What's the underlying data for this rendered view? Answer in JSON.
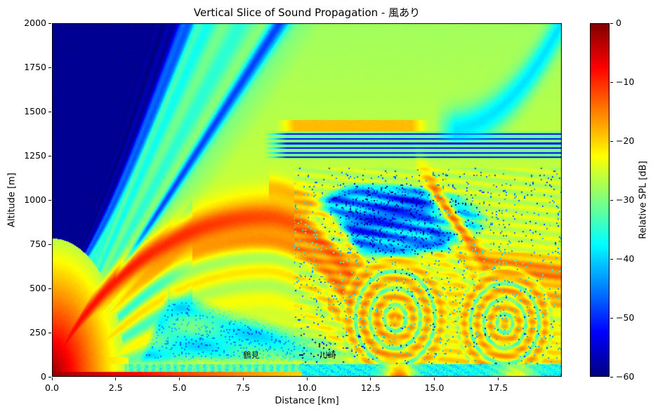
{
  "figure": {
    "background": "#ffffff",
    "title": "Vertical Slice of Sound Propagation - 風あり"
  },
  "chart_data": {
    "type": "heatmap",
    "title": "Vertical Slice of Sound Propagation - 風あり",
    "xlabel": "Distance [km]",
    "ylabel": "Altitude [m]",
    "xlim": [
      0,
      20
    ],
    "ylim": [
      0,
      2000
    ],
    "x_ticks": [
      0,
      2.5,
      5,
      7.5,
      10,
      12.5,
      15,
      17.5
    ],
    "x_tick_labels": [
      "0.0",
      "2.5",
      "5.0",
      "7.5",
      "10.0",
      "12.5",
      "15.0",
      "17.5"
    ],
    "y_ticks": [
      0,
      250,
      500,
      750,
      1000,
      1250,
      1500,
      1750,
      2000
    ],
    "y_tick_labels": [
      "0",
      "250",
      "500",
      "750",
      "1000",
      "1250",
      "1500",
      "1750",
      "2000"
    ],
    "grid": false,
    "colormap": "jet",
    "colormap_stops": [
      {
        "pos": 0.0,
        "color": "#000080"
      },
      {
        "pos": 0.125,
        "color": "#0000ff"
      },
      {
        "pos": 0.375,
        "color": "#00ffff"
      },
      {
        "pos": 0.625,
        "color": "#ffff00"
      },
      {
        "pos": 0.875,
        "color": "#ff0000"
      },
      {
        "pos": 1.0,
        "color": "#800000"
      }
    ],
    "colorbar": {
      "label": "Relative SPL [dB]",
      "vmin": -60,
      "vmax": 0,
      "ticks": [
        0,
        -10,
        -20,
        -30,
        -40,
        -50,
        -60
      ],
      "tick_labels": [
        "0",
        "−10",
        "−20",
        "−30",
        "−40",
        "−50",
        "−60"
      ]
    },
    "annotations": [
      {
        "text": "鶴見",
        "x_km": 7.5,
        "alt_m": 100
      },
      {
        "text": "川崎",
        "x_km": 10.5,
        "alt_m": 100
      }
    ],
    "source": {
      "x_km": 0,
      "alt_m": 0,
      "peak_dB": 0
    },
    "features": [
      {
        "name": "deep-shadow-zone",
        "description": "dark navy wedge filling the upper-left, above a ray of ~380 m per km from the source",
        "level_dB": -60
      },
      {
        "name": "ray-fan",
        "description": "cyan-green fan of rays along the shadow edge with a narrow dark null line running from ~(4.5 km, 950 m) to (8.6 km, 2000 m)",
        "level_dB": -33
      },
      {
        "name": "main-caustic-beam",
        "description": "bright red-orange beam rising from the source, crest near (8.3 km, 880 m), returning to ground near 13.3 km",
        "level_dB": -10
      },
      {
        "name": "upper-orange-band",
        "description": "orange band at 1380-1450 m between 9 and 14.5 km, descending toward ~600 m by 17-20 km",
        "level_dB": -16
      },
      {
        "name": "duct-interference-stripes",
        "description": "thin horizontal dark-blue interference lines between ~1235 and 1390 m altitude from 8.5 km to the right edge",
        "level_dB": -52
      },
      {
        "name": "quiet-wedge",
        "description": "speckled dark-blue interference minimum between 10.5 and 15 km at 720-1060 m altitude",
        "level_dB": -46
      },
      {
        "name": "ring-caustics",
        "description": "concentric elliptical yellow-orange ring patterns centred near (13.4 km, 330 m) and (17.7 km, 300 m)",
        "level_dB": -20
      },
      {
        "name": "hot-ground-stripe",
        "description": "red high-level surface layer below ~30 m from the source out to ~8 km",
        "level_dB": -5
      },
      {
        "name": "cool-surface-layer",
        "description": "cyan speckled surface layer below ~70 m from ~10 km to the right edge, with orange touchdown near 13.6 km",
        "level_dB": -37
      },
      {
        "name": "upper-right-blue-arc",
        "description": "blue arc curving from ~(15.3 km, 1400 m) up to the top-right corner",
        "level_dB": -44
      }
    ]
  }
}
